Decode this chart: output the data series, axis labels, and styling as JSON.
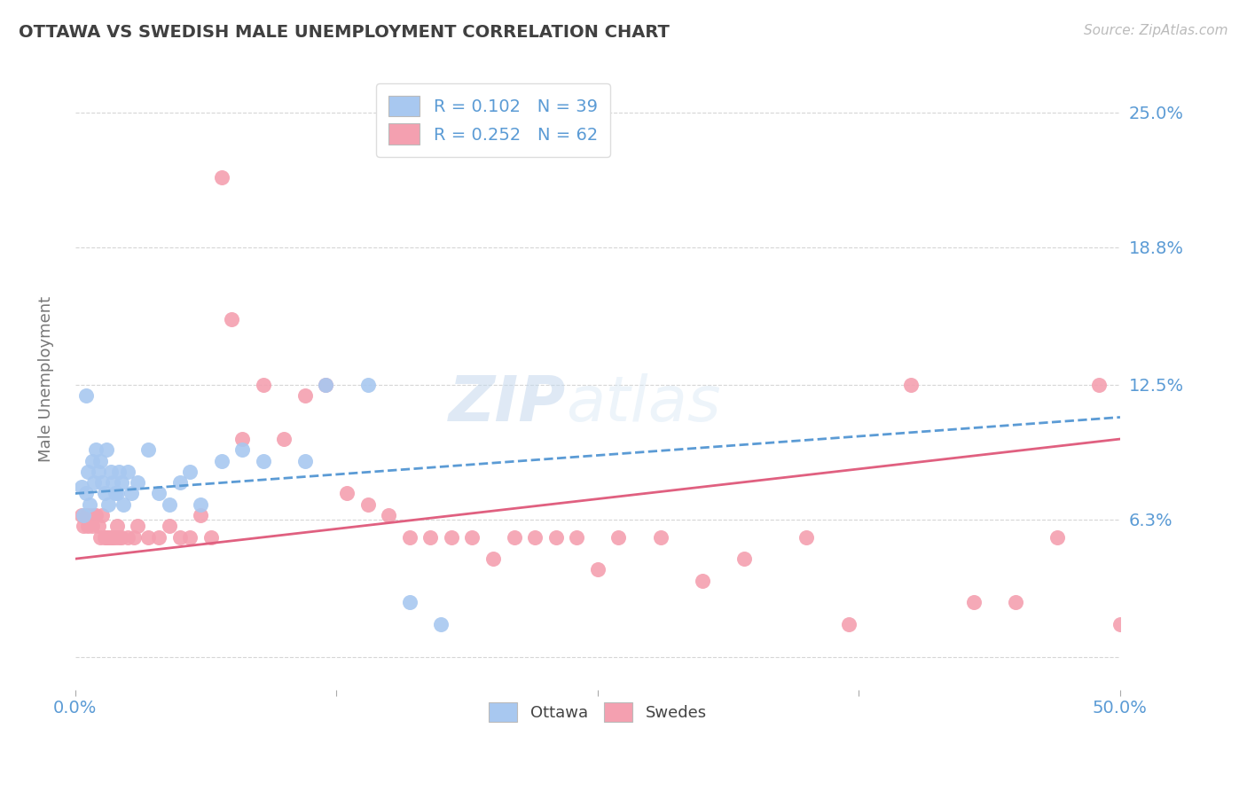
{
  "title": "OTTAWA VS SWEDISH MALE UNEMPLOYMENT CORRELATION CHART",
  "source_text": "Source: ZipAtlas.com",
  "ylabel": "Male Unemployment",
  "xlim": [
    0,
    50
  ],
  "ylim": [
    -1.5,
    27
  ],
  "yticks": [
    0,
    6.3,
    12.5,
    18.8,
    25.0
  ],
  "ytick_labels": [
    "",
    "6.3%",
    "12.5%",
    "18.8%",
    "25.0%"
  ],
  "ottawa_R": "0.102",
  "ottawa_N": "39",
  "swedes_R": "0.252",
  "swedes_N": "62",
  "ottawa_color": "#a8c8f0",
  "swedes_color": "#f4a0b0",
  "trend_ottawa_color": "#5b9bd5",
  "trend_swedes_color": "#e06080",
  "background_color": "#ffffff",
  "grid_color": "#cccccc",
  "watermark_zip": "ZIP",
  "watermark_atlas": "atlas",
  "title_color": "#404040",
  "axis_label_color": "#5b9bd5",
  "ottawa_x": [
    0.3,
    0.4,
    0.5,
    0.5,
    0.6,
    0.7,
    0.8,
    0.9,
    1.0,
    1.1,
    1.2,
    1.3,
    1.4,
    1.5,
    1.6,
    1.7,
    1.8,
    1.9,
    2.0,
    2.1,
    2.2,
    2.3,
    2.5,
    2.7,
    3.0,
    3.5,
    4.0,
    4.5,
    5.0,
    5.5,
    6.0,
    7.0,
    8.0,
    9.0,
    11.0,
    12.0,
    14.0,
    16.0,
    17.5
  ],
  "ottawa_y": [
    7.8,
    6.5,
    12.0,
    7.5,
    8.5,
    7.0,
    9.0,
    8.0,
    9.5,
    8.5,
    9.0,
    8.0,
    7.5,
    9.5,
    7.0,
    8.5,
    8.0,
    7.5,
    7.5,
    8.5,
    8.0,
    7.0,
    8.5,
    7.5,
    8.0,
    9.5,
    7.5,
    7.0,
    8.0,
    8.5,
    7.0,
    9.0,
    9.5,
    9.0,
    9.0,
    12.5,
    12.5,
    2.5,
    1.5
  ],
  "swedes_x": [
    0.3,
    0.4,
    0.5,
    0.6,
    0.7,
    0.8,
    0.9,
    1.0,
    1.1,
    1.2,
    1.3,
    1.4,
    1.5,
    1.6,
    1.7,
    1.8,
    1.9,
    2.0,
    2.1,
    2.2,
    2.5,
    2.8,
    3.0,
    3.5,
    4.0,
    4.5,
    5.0,
    5.5,
    6.0,
    6.5,
    7.0,
    7.5,
    8.0,
    9.0,
    10.0,
    11.0,
    12.0,
    13.0,
    14.0,
    15.0,
    16.0,
    17.0,
    18.0,
    19.0,
    20.0,
    21.0,
    22.0,
    23.0,
    24.0,
    25.0,
    26.0,
    28.0,
    30.0,
    32.0,
    35.0,
    37.0,
    40.0,
    43.0,
    45.0,
    47.0,
    49.0,
    50.0
  ],
  "swedes_y": [
    6.5,
    6.0,
    6.5,
    6.0,
    6.5,
    6.0,
    6.5,
    6.5,
    6.0,
    5.5,
    6.5,
    5.5,
    5.5,
    5.5,
    5.5,
    5.5,
    5.5,
    6.0,
    5.5,
    5.5,
    5.5,
    5.5,
    6.0,
    5.5,
    5.5,
    6.0,
    5.5,
    5.5,
    6.5,
    5.5,
    22.0,
    15.5,
    10.0,
    12.5,
    10.0,
    12.0,
    12.5,
    7.5,
    7.0,
    6.5,
    5.5,
    5.5,
    5.5,
    5.5,
    4.5,
    5.5,
    5.5,
    5.5,
    5.5,
    4.0,
    5.5,
    5.5,
    3.5,
    4.5,
    5.5,
    1.5,
    12.5,
    2.5,
    2.5,
    5.5,
    12.5,
    1.5
  ]
}
